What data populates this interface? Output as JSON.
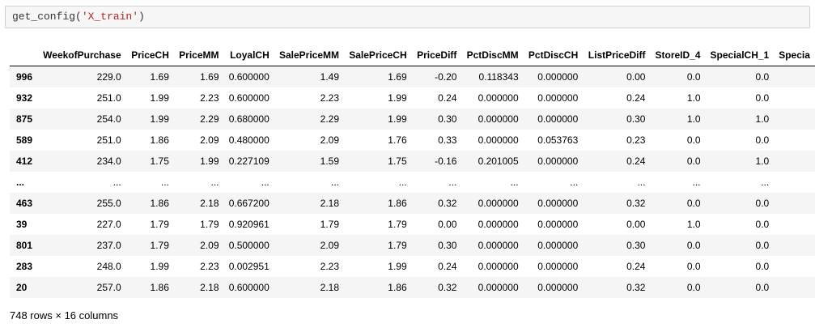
{
  "input_cell": {
    "func": "get_config(",
    "arg": "'X_train'",
    "close": ")"
  },
  "table": {
    "columns": [
      "WeekofPurchase",
      "PriceCH",
      "PriceMM",
      "LoyalCH",
      "SalePriceMM",
      "SalePriceCH",
      "PriceDiff",
      "PctDiscMM",
      "PctDiscCH",
      "ListPriceDiff",
      "StoreID_4",
      "SpecialCH_1",
      "Specia"
    ],
    "rows": [
      {
        "index": "996",
        "values": [
          "229.0",
          "1.69",
          "1.69",
          "0.600000",
          "1.49",
          "1.69",
          "-0.20",
          "0.118343",
          "0.000000",
          "0.00",
          "0.0",
          "0.0",
          ""
        ]
      },
      {
        "index": "932",
        "values": [
          "251.0",
          "1.99",
          "2.23",
          "0.600000",
          "2.23",
          "1.99",
          "0.24",
          "0.000000",
          "0.000000",
          "0.24",
          "1.0",
          "0.0",
          ""
        ]
      },
      {
        "index": "875",
        "values": [
          "254.0",
          "1.99",
          "2.29",
          "0.680000",
          "2.29",
          "1.99",
          "0.30",
          "0.000000",
          "0.000000",
          "0.30",
          "1.0",
          "1.0",
          ""
        ]
      },
      {
        "index": "589",
        "values": [
          "251.0",
          "1.86",
          "2.09",
          "0.480000",
          "2.09",
          "1.76",
          "0.33",
          "0.000000",
          "0.053763",
          "0.23",
          "0.0",
          "0.0",
          ""
        ]
      },
      {
        "index": "412",
        "values": [
          "234.0",
          "1.75",
          "1.99",
          "0.227109",
          "1.59",
          "1.75",
          "-0.16",
          "0.201005",
          "0.000000",
          "0.24",
          "0.0",
          "1.0",
          ""
        ]
      },
      {
        "index": "...",
        "values": [
          "...",
          "...",
          "...",
          "...",
          "...",
          "...",
          "...",
          "...",
          "...",
          "...",
          "...",
          "...",
          ""
        ]
      },
      {
        "index": "463",
        "values": [
          "255.0",
          "1.86",
          "2.18",
          "0.667200",
          "2.18",
          "1.86",
          "0.32",
          "0.000000",
          "0.000000",
          "0.32",
          "0.0",
          "0.0",
          ""
        ]
      },
      {
        "index": "39",
        "values": [
          "227.0",
          "1.79",
          "1.79",
          "0.920961",
          "1.79",
          "1.79",
          "0.00",
          "0.000000",
          "0.000000",
          "0.00",
          "1.0",
          "0.0",
          ""
        ]
      },
      {
        "index": "801",
        "values": [
          "237.0",
          "1.79",
          "2.09",
          "0.500000",
          "2.09",
          "1.79",
          "0.30",
          "0.000000",
          "0.000000",
          "0.30",
          "0.0",
          "0.0",
          ""
        ]
      },
      {
        "index": "283",
        "values": [
          "248.0",
          "1.99",
          "2.23",
          "0.002951",
          "2.23",
          "1.99",
          "0.24",
          "0.000000",
          "0.000000",
          "0.24",
          "0.0",
          "0.0",
          ""
        ]
      },
      {
        "index": "20",
        "values": [
          "257.0",
          "1.86",
          "2.18",
          "0.600000",
          "2.18",
          "1.86",
          "0.32",
          "0.000000",
          "0.000000",
          "0.32",
          "0.0",
          "0.0",
          ""
        ]
      }
    ]
  },
  "footer": "748 rows × 16 columns"
}
